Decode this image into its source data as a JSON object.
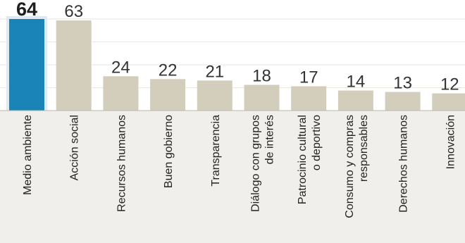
{
  "chart_data": {
    "type": "bar",
    "title": "",
    "xlabel": "",
    "ylabel": "",
    "ylim": [
      0,
      64
    ],
    "grid": true,
    "legend": "none",
    "categories": [
      [
        "Medio ambiente"
      ],
      [
        "Acción social"
      ],
      [
        "Recursos humanos"
      ],
      [
        "Buen gobierno"
      ],
      [
        "Transparencia"
      ],
      [
        "Diálogo con grupos",
        "de interés"
      ],
      [
        "Patrocinio cultural",
        "o deportivo"
      ],
      [
        "Consumo y compras",
        "responsables"
      ],
      [
        "Derechos humanos"
      ],
      [
        "Innovación"
      ]
    ],
    "values": [
      64,
      63,
      24,
      22,
      21,
      18,
      17,
      14,
      13,
      12
    ],
    "value_labels": [
      "64",
      "63",
      "24",
      "22",
      "21",
      "18",
      "17",
      "14",
      "13",
      "12"
    ],
    "highlight_index": 0,
    "colors": {
      "highlight": "#1a83b8",
      "bar": "#d3cdbc",
      "value_text": "#333333",
      "highlight_text": "#1f1f1f",
      "label_text": "#222222",
      "label_band": "#f0efec",
      "grid": "#e9e6df",
      "baseline": "#bcb7aa"
    }
  }
}
